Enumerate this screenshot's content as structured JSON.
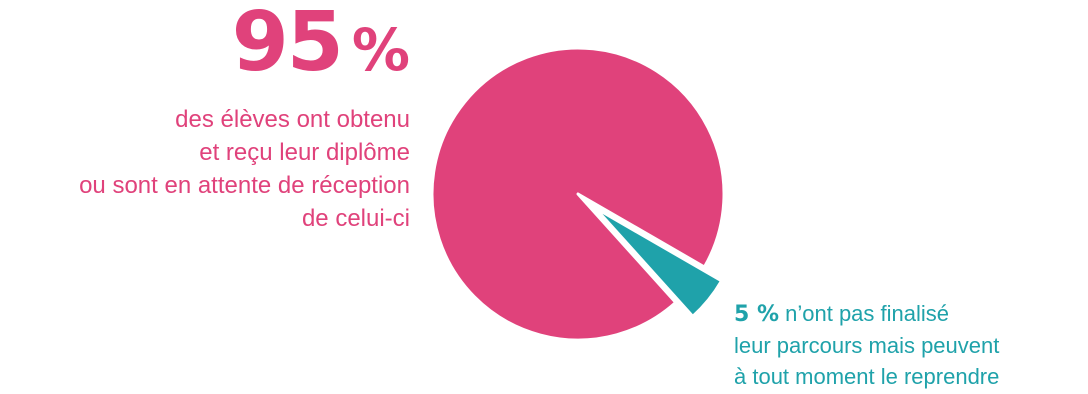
{
  "chart_data": {
    "type": "pie",
    "slices": [
      {
        "label": "des élèves ont obtenu et reçu leur diplôme ou sont en attente de réception de celui-ci",
        "value": 95,
        "color": "#e0427b"
      },
      {
        "label": "n’ont pas finalisé leur parcours mais peuvent à tout moment le reprendre",
        "value": 5,
        "color": "#1fa2aa"
      }
    ]
  },
  "left": {
    "number": "95",
    "percent_sign": "%",
    "lines": [
      "des élèves ont obtenu",
      "et reçu leur diplôme",
      "ou sont en attente de réception",
      "de celui-ci"
    ]
  },
  "right": {
    "percent": "5 %",
    "line1_rest": " n’ont pas finalisé",
    "line2": "leur parcours mais peuvent",
    "line3": "à tout moment le reprendre"
  }
}
